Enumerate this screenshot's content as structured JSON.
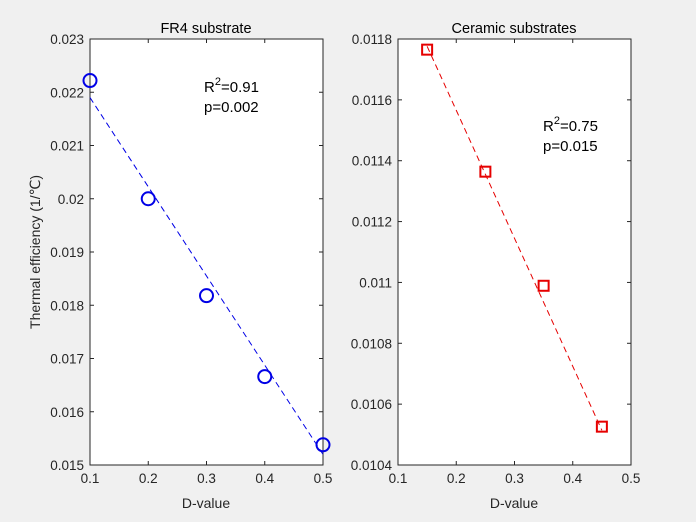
{
  "chart_data": [
    {
      "type": "scatter",
      "title": "FR4 substrate",
      "xlabel": "D-value",
      "ylabel": "Thermal efficiency (1/℃)",
      "xlim": [
        0.1,
        0.5
      ],
      "ylim": [
        0.015,
        0.023
      ],
      "xticks": [
        "0.1",
        "0.2",
        "0.3",
        "0.4",
        "0.5"
      ],
      "yticks": [
        "0.015",
        "0.016",
        "0.017",
        "0.018",
        "0.019",
        "0.02",
        "0.021",
        "0.022",
        "0.023"
      ],
      "grid": false,
      "marker": "circle",
      "color": "#0000e6",
      "series": [
        {
          "x": [
            0.1,
            0.2,
            0.3,
            0.4,
            0.5
          ],
          "y": [
            0.02222,
            0.02,
            0.01818,
            0.01666,
            0.01538
          ]
        }
      ],
      "fit_line": {
        "x": [
          0.1,
          0.5
        ],
        "y": [
          0.0219,
          0.0152
        ]
      },
      "annotation": {
        "r2_label": "R",
        "r2_sup": "2",
        "r2_value": "=0.91",
        "p": "p=0.002"
      }
    },
    {
      "type": "scatter",
      "title": "Ceramic substrates",
      "xlabel": "D-value",
      "ylabel": "",
      "xlim": [
        0.1,
        0.5
      ],
      "ylim": [
        0.0104,
        0.0118
      ],
      "xticks": [
        "0.1",
        "0.2",
        "0.3",
        "0.4",
        "0.5"
      ],
      "yticks": [
        "0.0104",
        "0.0106",
        "0.0108",
        "0.011",
        "0.0112",
        "0.0114",
        "0.0116",
        "0.0118"
      ],
      "grid": false,
      "marker": "square",
      "color": "#e60000",
      "series": [
        {
          "x": [
            0.15,
            0.25,
            0.35,
            0.45
          ],
          "y": [
            0.011765,
            0.011364,
            0.010989,
            0.010526
          ]
        }
      ],
      "fit_line": {
        "x": [
          0.15,
          0.45
        ],
        "y": [
          0.011776,
          0.010514
        ]
      },
      "annotation": {
        "r2_label": "R",
        "r2_sup": "2",
        "r2_value": "=0.75",
        "p": "p=0.015"
      }
    }
  ]
}
